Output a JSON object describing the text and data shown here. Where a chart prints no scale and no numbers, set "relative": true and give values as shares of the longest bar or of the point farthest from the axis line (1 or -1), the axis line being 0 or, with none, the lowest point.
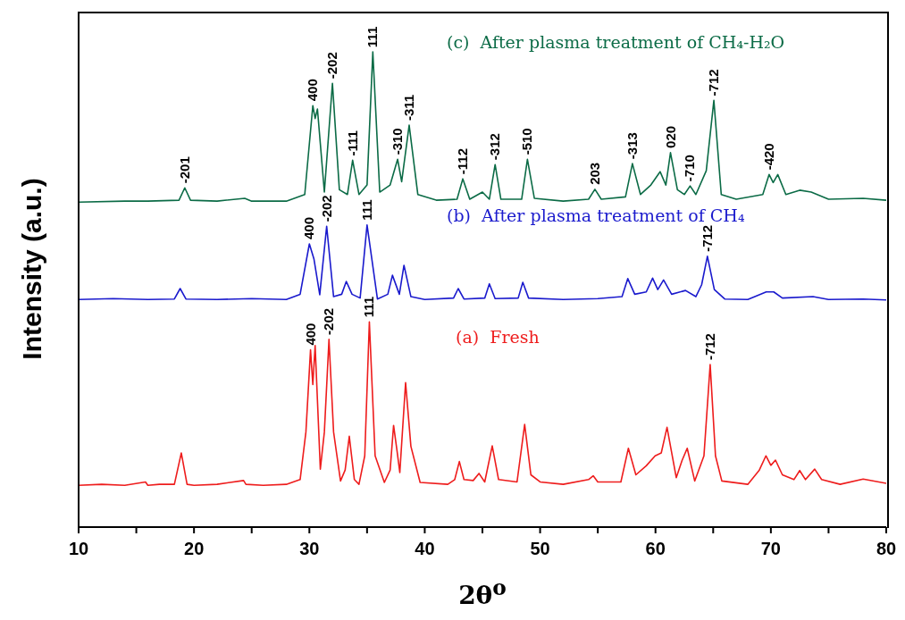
{
  "chart_data": {
    "type": "line",
    "relative": true,
    "xlabel": "2θ$^{o}$",
    "ylabel": "Intensity (a.u.)",
    "xlim": [
      10,
      80
    ],
    "xticks": [
      10,
      {
        "value": 15,
        "label": null
      },
      20,
      {
        "value": 25,
        "label": null
      },
      30,
      {
        "value": 35,
        "label": null
      },
      40,
      {
        "value": 45,
        "label": null
      },
      50,
      {
        "value": 55,
        "label": null
      },
      60,
      {
        "value": 65,
        "label": null
      },
      70,
      {
        "value": 75,
        "label": null
      },
      80
    ],
    "grid": false,
    "legend": false,
    "marker": "none",
    "line_style": "solid",
    "series": [
      {
        "name": "(a)  Fresh",
        "color": "#ee1c1c",
        "x": [
          10,
          12,
          14,
          15.8,
          16,
          17,
          18.3,
          18.9,
          19.4,
          20,
          22,
          24.3,
          24.5,
          26,
          28,
          29.2,
          29.7,
          30.1,
          30.3,
          30.5,
          30.95,
          31.3,
          31.7,
          32.1,
          32.7,
          33.1,
          33.46,
          33.9,
          34.3,
          34.8,
          35.2,
          35.7,
          36.5,
          37.0,
          37.3,
          37.6,
          37.84,
          38.34,
          38.8,
          39.6,
          42,
          42.6,
          43.0,
          43.4,
          44.2,
          44.7,
          45.2,
          45.85,
          46.4,
          48,
          48.66,
          49.2,
          50,
          52,
          54.2,
          54.6,
          55,
          57,
          57.65,
          58.3,
          59.2,
          59.97,
          60.5,
          61.0,
          61.8,
          62.3,
          62.75,
          63.4,
          64.2,
          64.74,
          65.2,
          65.75,
          68,
          69.0,
          69.57,
          70.0,
          70.4,
          71.0,
          72.0,
          72.5,
          73.0,
          73.8,
          74.4,
          76,
          78,
          80
        ],
        "values": [
          0.088,
          0.09,
          0.088,
          0.095,
          0.088,
          0.09,
          0.09,
          0.156,
          0.09,
          0.088,
          0.09,
          0.098,
          0.09,
          0.088,
          0.09,
          0.1,
          0.2,
          0.373,
          0.3,
          0.382,
          0.122,
          0.2,
          0.395,
          0.2,
          0.097,
          0.12,
          0.191,
          0.1,
          0.09,
          0.15,
          0.432,
          0.15,
          0.094,
          0.12,
          0.214,
          0.16,
          0.115,
          0.304,
          0.17,
          0.094,
          0.09,
          0.1,
          0.138,
          0.1,
          0.098,
          0.113,
          0.095,
          0.171,
          0.1,
          0.095,
          0.216,
          0.11,
          0.095,
          0.09,
          0.1,
          0.108,
          0.095,
          0.095,
          0.166,
          0.11,
          0.129,
          0.15,
          0.156,
          0.21,
          0.104,
          0.14,
          0.166,
          0.097,
          0.15,
          0.342,
          0.15,
          0.097,
          0.09,
          0.12,
          0.15,
          0.13,
          0.141,
          0.11,
          0.1,
          0.119,
          0.1,
          0.122,
          0.1,
          0.09,
          0.101,
          0.092
        ]
      },
      {
        "name": "(b)  After plasma treatment of CH₄",
        "color": "#1a1acd",
        "x": [
          10,
          13,
          16,
          18.3,
          18.8,
          19.3,
          22,
          25,
          28,
          29.2,
          30.0,
          30.4,
          30.9,
          31.5,
          32.1,
          32.8,
          33.2,
          33.7,
          34.4,
          35.0,
          35.9,
          36.8,
          37.2,
          37.8,
          38.2,
          38.8,
          40,
          42.5,
          42.9,
          43.4,
          45.2,
          45.6,
          46.1,
          48.1,
          48.5,
          49,
          52,
          55,
          57.1,
          57.6,
          58.2,
          59.2,
          59.75,
          60.2,
          60.7,
          61.4,
          62.6,
          63.5,
          64.0,
          64.5,
          65.1,
          66,
          68,
          69.6,
          70.25,
          71,
          73.65,
          75,
          78,
          80
        ],
        "values": [
          0.479,
          0.481,
          0.479,
          0.48,
          0.502,
          0.48,
          0.479,
          0.481,
          0.479,
          0.49,
          0.596,
          0.564,
          0.489,
          0.633,
          0.485,
          0.49,
          0.517,
          0.49,
          0.482,
          0.636,
          0.48,
          0.49,
          0.53,
          0.49,
          0.551,
          0.485,
          0.479,
          0.482,
          0.502,
          0.48,
          0.482,
          0.512,
          0.481,
          0.482,
          0.515,
          0.482,
          0.479,
          0.481,
          0.485,
          0.523,
          0.49,
          0.495,
          0.524,
          0.5,
          0.52,
          0.49,
          0.498,
          0.485,
          0.51,
          0.57,
          0.5,
          0.48,
          0.479,
          0.495,
          0.495,
          0.482,
          0.485,
          0.479,
          0.48,
          0.478
        ]
      },
      {
        "name": "(c)  After plasma treatment of CH₄-H₂O",
        "color": "#0b6b46",
        "x": [
          10,
          14,
          16,
          18.7,
          19.2,
          19.7,
          22,
          24.4,
          25,
          28,
          29.6,
          30.3,
          30.5,
          30.7,
          31.3,
          32.0,
          32.6,
          33.3,
          33.75,
          34.3,
          35.0,
          35.5,
          36.1,
          37.0,
          37.65,
          38.0,
          38.65,
          39.4,
          41,
          42.8,
          43.3,
          43.9,
          45.0,
          45.6,
          46.1,
          46.6,
          48.4,
          48.9,
          49.5,
          52,
          54.2,
          54.75,
          55.3,
          57.4,
          58.0,
          58.7,
          59.6,
          60.4,
          60.9,
          61.3,
          61.9,
          62.5,
          63.0,
          63.5,
          64.4,
          65.06,
          65.7,
          67,
          69.3,
          69.85,
          70.2,
          70.6,
          71.3,
          72.5,
          73.5,
          75,
          78,
          80
        ],
        "values": [
          0.684,
          0.686,
          0.686,
          0.688,
          0.714,
          0.688,
          0.686,
          0.692,
          0.686,
          0.686,
          0.7,
          0.887,
          0.86,
          0.88,
          0.705,
          0.934,
          0.71,
          0.7,
          0.772,
          0.7,
          0.72,
          1.0,
          0.705,
          0.72,
          0.774,
          0.727,
          0.846,
          0.7,
          0.688,
          0.69,
          0.733,
          0.69,
          0.705,
          0.69,
          0.763,
          0.69,
          0.69,
          0.774,
          0.692,
          0.686,
          0.69,
          0.711,
          0.69,
          0.695,
          0.765,
          0.7,
          0.72,
          0.748,
          0.72,
          0.788,
          0.71,
          0.7,
          0.718,
          0.7,
          0.75,
          0.898,
          0.7,
          0.69,
          0.7,
          0.742,
          0.725,
          0.742,
          0.7,
          0.709,
          0.705,
          0.69,
          0.692,
          0.688
        ]
      }
    ],
    "annotations": [
      {
        "text": "-201",
        "x": 19.2,
        "y": 0.714
      },
      {
        "text": "400",
        "x": 30.3,
        "y": 0.887
      },
      {
        "text": "-202",
        "x": 32.0,
        "y": 0.934
      },
      {
        "text": "-111",
        "x": 33.75,
        "y": 0.772
      },
      {
        "text": "111",
        "x": 35.5,
        "y": 1.0
      },
      {
        "text": "-310",
        "x": 37.65,
        "y": 0.774
      },
      {
        "text": "-311",
        "x": 38.65,
        "y": 0.846
      },
      {
        "text": "-112",
        "x": 43.3,
        "y": 0.733
      },
      {
        "text": "-312",
        "x": 46.1,
        "y": 0.763
      },
      {
        "text": "-510",
        "x": 48.9,
        "y": 0.774
      },
      {
        "text": "203",
        "x": 54.75,
        "y": 0.711
      },
      {
        "text": "-313",
        "x": 58.0,
        "y": 0.765
      },
      {
        "text": "020",
        "x": 61.3,
        "y": 0.788
      },
      {
        "text": "-710",
        "x": 63.0,
        "y": 0.718
      },
      {
        "text": "-712",
        "x": 65.06,
        "y": 0.898
      },
      {
        "text": "-420",
        "x": 69.85,
        "y": 0.742
      },
      {
        "text": "400",
        "x": 30.0,
        "y": 0.596
      },
      {
        "text": "-202",
        "x": 31.5,
        "y": 0.633
      },
      {
        "text": "111",
        "x": 35.0,
        "y": 0.636
      },
      {
        "text": "-712",
        "x": 64.5,
        "y": 0.57
      },
      {
        "text": "400",
        "x": 30.1,
        "y": 0.373
      },
      {
        "text": "-202",
        "x": 31.7,
        "y": 0.395
      },
      {
        "text": "111",
        "x": 35.2,
        "y": 0.432
      },
      {
        "text": "-712",
        "x": 64.74,
        "y": 0.342
      }
    ]
  }
}
